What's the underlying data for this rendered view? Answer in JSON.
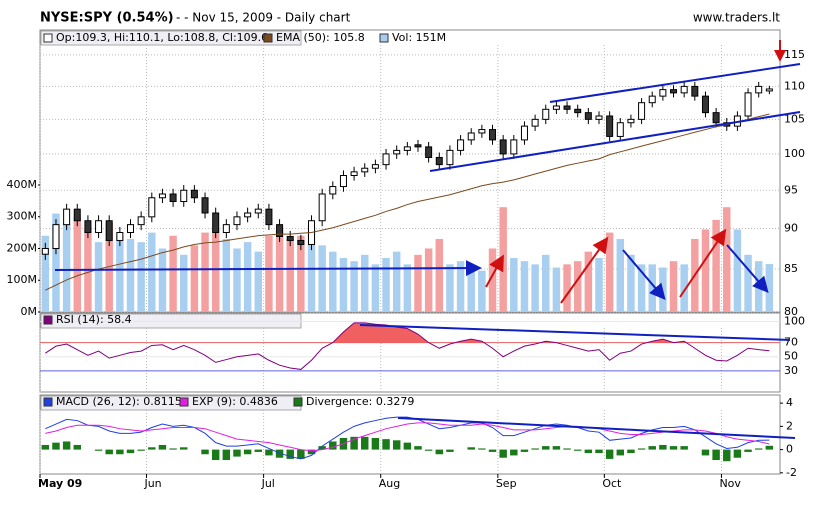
{
  "chart_data": {
    "type": "candlestick",
    "title": "NYSE:SPY (0.54%)",
    "subtitle": "-  - Nov 15, 2009 - Daily chart",
    "source": "www.traders.lt",
    "log": true,
    "grid": true,
    "xlim": [
      0,
      69.5
    ],
    "xticks": [
      {
        "value": 0,
        "label": "May 09"
      },
      {
        "value": 10,
        "label": "Jun"
      },
      {
        "value": 21,
        "label": "Jul"
      },
      {
        "value": 32,
        "label": "Aug"
      },
      {
        "value": 43,
        "label": "Sep"
      },
      {
        "value": 53,
        "label": "Oct"
      },
      {
        "value": 64,
        "label": "Nov"
      }
    ],
    "ylim": [
      80,
      115.8
    ],
    "yticks": [
      80,
      85,
      90,
      95,
      100,
      105,
      110,
      115
    ],
    "series": [
      {
        "name": "Op:109.3, Hi:110.1, Lo:108.8, Cl:109.6",
        "type": "candlestick",
        "color": "#000000",
        "down_color": "#333333",
        "open": [
          86.8,
          87.5,
          90.5,
          92.5,
          91,
          89.5,
          91,
          88.5,
          89.5,
          90.5,
          91.5,
          94,
          94.5,
          93.5,
          95,
          94,
          92,
          89.5,
          90.5,
          91.5,
          92,
          92.5,
          90.5,
          89,
          88.5,
          88,
          91,
          94.5,
          95.5,
          97,
          97.5,
          98,
          98.5,
          100,
          100.5,
          101.3,
          101,
          99.5,
          98.5,
          100.5,
          102,
          103,
          103.5,
          102,
          100,
          102,
          104,
          105,
          106.5,
          107,
          106.5,
          106,
          105,
          105.5,
          102.5,
          104.5,
          105,
          107.5,
          108.5,
          109.5,
          109,
          110,
          108.5,
          106,
          104.5,
          104,
          105.5,
          109,
          109.3
        ],
        "high": [
          88.2,
          91.2,
          93.2,
          93.2,
          91.7,
          91.7,
          91.7,
          90.2,
          91.2,
          92.2,
          94.7,
          95.2,
          95.2,
          95.7,
          95.7,
          94.7,
          92.7,
          91.2,
          92.2,
          92.7,
          93.2,
          93.2,
          91.2,
          89.7,
          89.2,
          91.7,
          95.2,
          96.2,
          97.7,
          98.2,
          98.7,
          99.2,
          100.7,
          101.2,
          101.7,
          102,
          101.7,
          100.2,
          101.2,
          102.7,
          103.7,
          104.2,
          104.2,
          102.7,
          102.7,
          104.7,
          105.7,
          107.2,
          107.7,
          107.7,
          107.2,
          106.7,
          106.2,
          106.2,
          105.2,
          105.7,
          108.2,
          109.2,
          110.2,
          110.2,
          110.7,
          110.7,
          109.2,
          106.7,
          105.2,
          106.2,
          109.7,
          110.7,
          110.1
        ],
        "low": [
          86.1,
          86.8,
          89.8,
          90.3,
          88.8,
          88.8,
          87.8,
          87.8,
          88.8,
          89.8,
          90.8,
          93.3,
          92.8,
          92.8,
          93.3,
          91.3,
          88.8,
          88.8,
          89.8,
          90.8,
          91.3,
          89.8,
          88.3,
          87.8,
          87.3,
          87.3,
          90.3,
          93.8,
          94.8,
          96.3,
          96.8,
          97.3,
          97.8,
          99.3,
          99.8,
          100.3,
          98.8,
          97.8,
          97.8,
          99.8,
          101.3,
          102.3,
          101.3,
          99.3,
          99.3,
          101.3,
          103.3,
          104.3,
          105.8,
          105.8,
          105.3,
          104.3,
          104.3,
          101.8,
          101.8,
          103.8,
          104.3,
          106.8,
          107.8,
          108.3,
          108.3,
          107.8,
          105.3,
          103.8,
          103.3,
          103.3,
          104.8,
          108.3,
          108.8
        ],
        "close": [
          87.5,
          90.5,
          92.5,
          91,
          89.5,
          91,
          88.5,
          89.5,
          90.5,
          91.5,
          94,
          94.5,
          93.5,
          95,
          94,
          92,
          89.5,
          90.5,
          91.5,
          92,
          92.5,
          90.5,
          89,
          88.5,
          88,
          91,
          94.5,
          95.5,
          97,
          97.5,
          98,
          98.5,
          100,
          100.5,
          101,
          101,
          99.5,
          98.5,
          100.5,
          102,
          103,
          103.5,
          102,
          100,
          102,
          104,
          105,
          106.5,
          107,
          106.5,
          106,
          105,
          105.5,
          102.5,
          104.5,
          105,
          107.5,
          108.5,
          109.5,
          109,
          110,
          108.5,
          106,
          104.5,
          104,
          105.5,
          109,
          110,
          109.6
        ]
      },
      {
        "name": "EMA (50): 105.8",
        "type": "line",
        "color": "#7a4a1e",
        "values": [
          82.5,
          83.1,
          83.7,
          84.2,
          84.6,
          85.0,
          85.3,
          85.6,
          85.9,
          86.2,
          86.6,
          87.0,
          87.3,
          87.7,
          88.0,
          88.2,
          88.3,
          88.5,
          88.7,
          88.9,
          89.1,
          89.2,
          89.3,
          89.3,
          89.4,
          89.5,
          89.8,
          90.1,
          90.5,
          90.9,
          91.3,
          91.7,
          92.2,
          92.6,
          93.1,
          93.5,
          93.8,
          94.1,
          94.4,
          94.8,
          95.2,
          95.6,
          95.9,
          96.1,
          96.4,
          96.8,
          97.2,
          97.6,
          98.0,
          98.4,
          98.7,
          99.0,
          99.3,
          99.9,
          100.3,
          100.7,
          101.1,
          101.5,
          101.9,
          102.3,
          102.7,
          103.1,
          103.5,
          103.9,
          104.2,
          104.6,
          105.0,
          105.4,
          105.8
        ]
      }
    ],
    "volume": {
      "name": "Vol: 151M",
      "type": "bar",
      "color": "#a8cef0",
      "up_color": "#a8cef0",
      "down_color": "#f4a0a0",
      "ylim": [
        0,
        825
      ],
      "yticks": [
        {
          "value": 0,
          "label": "0M"
        },
        {
          "value": 100,
          "label": "100M"
        },
        {
          "value": 200,
          "label": "200M"
        },
        {
          "value": 300,
          "label": "300M"
        },
        {
          "value": 400,
          "label": "400M"
        }
      ],
      "values": [
        240,
        310,
        280,
        300,
        260,
        220,
        280,
        240,
        230,
        220,
        250,
        200,
        240,
        180,
        210,
        250,
        260,
        230,
        200,
        220,
        190,
        240,
        260,
        230,
        240,
        270,
        210,
        190,
        170,
        160,
        180,
        150,
        170,
        190,
        150,
        180,
        200,
        230,
        150,
        160,
        140,
        130,
        200,
        330,
        170,
        160,
        150,
        180,
        140,
        150,
        160,
        190,
        170,
        250,
        230,
        180,
        150,
        150,
        140,
        160,
        150,
        230,
        260,
        290,
        330,
        260,
        180,
        160,
        151
      ]
    },
    "rsi": {
      "name": "RSI (14): 58.4",
      "type": "line",
      "color": "#800080",
      "fill_color": "#f06060",
      "ylim": [
        0,
        112
      ],
      "yticks": [
        30,
        50,
        70,
        100
      ],
      "grid_colors": [
        "#6060e0",
        "#e8e8e8",
        "#e06060",
        "#e8e8e8"
      ],
      "values": [
        55,
        65,
        68,
        60,
        52,
        58,
        48,
        52,
        56,
        58,
        66,
        67,
        60,
        66,
        60,
        52,
        42,
        46,
        50,
        52,
        54,
        45,
        38,
        34,
        32,
        45,
        62,
        70,
        85,
        98,
        98,
        96,
        95,
        92,
        90,
        82,
        70,
        62,
        68,
        72,
        75,
        72,
        62,
        50,
        58,
        65,
        68,
        72,
        70,
        66,
        62,
        58,
        60,
        45,
        55,
        58,
        68,
        72,
        75,
        70,
        72,
        62,
        52,
        45,
        44,
        52,
        62,
        60,
        58.4
      ]
    },
    "macd": {
      "ylim": [
        -2.1,
        4.7
      ],
      "yticks": [
        -2,
        0,
        2,
        4
      ],
      "series": [
        {
          "name": "MACD (26, 12): 0.8115",
          "type": "line",
          "color": "#2040e0",
          "values": [
            1.8,
            2.2,
            2.6,
            2.5,
            2.1,
            2.0,
            1.6,
            1.4,
            1.4,
            1.5,
            1.9,
            2.2,
            2.0,
            2.1,
            1.9,
            1.4,
            0.6,
            0.3,
            0.3,
            0.4,
            0.5,
            0.1,
            -0.3,
            -0.6,
            -0.8,
            -0.5,
            0.3,
            0.9,
            1.5,
            2.0,
            2.3,
            2.5,
            2.7,
            2.8,
            2.8,
            2.6,
            2.2,
            1.8,
            1.9,
            2.1,
            2.3,
            2.3,
            1.9,
            1.2,
            1.2,
            1.5,
            1.8,
            2.1,
            2.2,
            2.1,
            1.9,
            1.6,
            1.5,
            0.8,
            0.9,
            1.0,
            1.4,
            1.7,
            1.9,
            1.9,
            2.0,
            1.7,
            1.1,
            0.5,
            0.1,
            0.2,
            0.6,
            0.8,
            0.8115
          ]
        },
        {
          "name": "EXP (9): 0.4836",
          "type": "line",
          "color": "#e020e0",
          "values": [
            1.4,
            1.6,
            1.9,
            2.1,
            2.1,
            2.1,
            2.0,
            1.8,
            1.7,
            1.6,
            1.7,
            1.8,
            1.9,
            1.9,
            1.9,
            1.8,
            1.5,
            1.2,
            0.9,
            0.8,
            0.7,
            0.6,
            0.4,
            0.2,
            0.0,
            -0.1,
            0.0,
            0.2,
            0.5,
            0.9,
            1.2,
            1.5,
            1.8,
            2.0,
            2.2,
            2.3,
            2.3,
            2.2,
            2.1,
            2.1,
            2.1,
            2.2,
            2.1,
            1.9,
            1.7,
            1.7,
            1.7,
            1.8,
            1.9,
            2.0,
            2.0,
            1.9,
            1.8,
            1.6,
            1.4,
            1.3,
            1.3,
            1.4,
            1.5,
            1.6,
            1.7,
            1.7,
            1.6,
            1.4,
            1.1,
            0.9,
            0.8,
            0.7,
            0.4836
          ]
        },
        {
          "name": "Divergence: 0.3279",
          "type": "bar",
          "color": "#1a7a1a",
          "values": [
            0.4,
            0.6,
            0.7,
            0.4,
            0,
            -0.1,
            -0.4,
            -0.4,
            -0.3,
            -0.1,
            0.2,
            0.4,
            0.1,
            0.2,
            0,
            -0.4,
            -0.9,
            -0.9,
            -0.6,
            -0.4,
            -0.2,
            -0.5,
            -0.7,
            -0.8,
            -0.8,
            -0.4,
            0.3,
            0.7,
            1.0,
            1.1,
            1.1,
            1.0,
            0.9,
            0.8,
            0.6,
            0.3,
            -0.1,
            -0.4,
            -0.2,
            0,
            0.2,
            0.1,
            -0.2,
            -0.7,
            -0.5,
            -0.2,
            0.1,
            0.3,
            0.3,
            0.1,
            -0.1,
            -0.3,
            -0.3,
            -0.8,
            -0.5,
            -0.3,
            0.1,
            0.3,
            0.4,
            0.3,
            0.3,
            0,
            -0.5,
            -0.9,
            -1.0,
            -0.7,
            -0.2,
            0.1,
            0.3279
          ]
        }
      ]
    }
  }
}
